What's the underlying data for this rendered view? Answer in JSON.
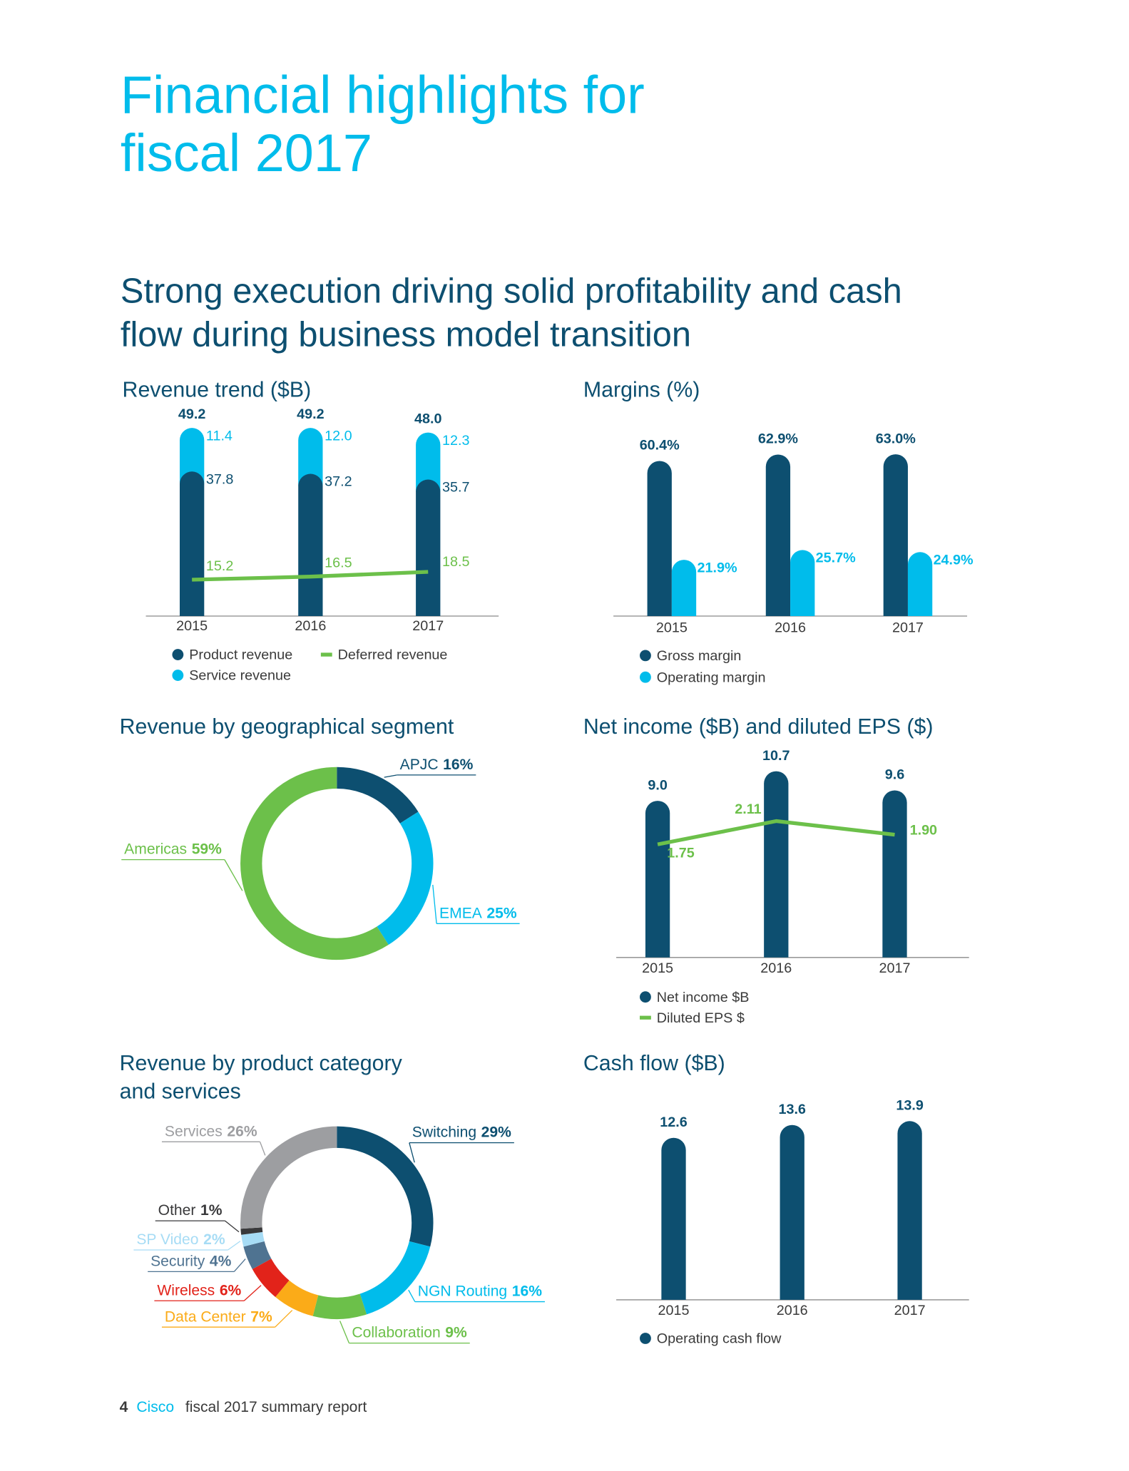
{
  "header": {
    "title": [
      "Financial highlights for",
      "fiscal 2017"
    ],
    "subtitle": [
      "Strong execution driving solid profitability and cash",
      "flow during business model transition"
    ]
  },
  "chart_data": [
    {
      "type": "bar",
      "stacked": true,
      "title": "Revenue trend ($B)",
      "categories": [
        "2015",
        "2016",
        "2017"
      ],
      "series": [
        {
          "name": "Product revenue",
          "color": "#0d4f70",
          "values": [
            37.8,
            37.2,
            35.7
          ]
        },
        {
          "name": "Service revenue",
          "color": "#00bceb",
          "values": [
            11.4,
            12.0,
            12.3
          ],
          "value_labels": [
            "11.4",
            "12.0",
            "12.3"
          ]
        },
        {
          "name": "Deferred revenue",
          "color": "#6cc04a",
          "kind": "line",
          "axis": "y2",
          "values": [
            15.2,
            16.5,
            18.5
          ]
        }
      ],
      "totals": {
        "values": [
          49.2,
          49.2,
          48.0
        ],
        "value_labels": [
          "49.2",
          "49.2",
          "48.0"
        ]
      }
    },
    {
      "type": "bar",
      "title": "Margins (%)",
      "categories": [
        "2015",
        "2016",
        "2017"
      ],
      "series": [
        {
          "name": "Gross margin",
          "color": "#0d4f70",
          "values": [
            60.4,
            62.9,
            63.0
          ],
          "value_labels": [
            "60.4%",
            "62.9%",
            "63.0%"
          ]
        },
        {
          "name": "Operating margin",
          "color": "#00bceb",
          "values": [
            21.9,
            25.7,
            24.9
          ],
          "value_labels": [
            "21.9%",
            "25.7%",
            "24.9%"
          ]
        }
      ]
    },
    {
      "type": "donut",
      "title": "Revenue by geographical segment",
      "categories": [
        "APJC",
        "EMEA",
        "Americas"
      ],
      "values": [
        16,
        25,
        59
      ],
      "value_labels": [
        "16%",
        "25%",
        "59%"
      ],
      "colors": [
        "#0d4f70",
        "#00bceb",
        "#6cc04a"
      ]
    },
    {
      "type": "bar",
      "title": "Net income ($B) and diluted EPS ($)",
      "categories": [
        "2015",
        "2016",
        "2017"
      ],
      "series": [
        {
          "name": "Net income $B",
          "color": "#0d4f70",
          "values": [
            9.0,
            10.7,
            9.6
          ],
          "value_labels": [
            "9.0",
            "10.7",
            "9.6"
          ]
        },
        {
          "name": "Diluted EPS $",
          "color": "#6cc04a",
          "kind": "line",
          "axis": "y2",
          "values": [
            1.75,
            2.11,
            1.9
          ],
          "value_labels": [
            "1.75",
            "2.11",
            "1.90"
          ]
        }
      ]
    },
    {
      "type": "donut",
      "title": [
        "Revenue by product category",
        "and services"
      ],
      "categories": [
        "Switching",
        "NGN Routing",
        "Collaboration",
        "Data Center",
        "Wireless",
        "Security",
        "SP Video",
        "Other",
        "Services"
      ],
      "values": [
        29,
        16,
        9,
        7,
        6,
        4,
        2,
        1,
        26
      ],
      "value_labels": [
        "29%",
        "16%",
        "9%",
        "7%",
        "6%",
        "4%",
        "2%",
        "1%",
        "26%"
      ],
      "colors": [
        "#0d4f70",
        "#00bceb",
        "#6cc04a",
        "#fbab18",
        "#e2231a",
        "#4f7391",
        "#a7dcf5",
        "#39393b",
        "#9d9ea1"
      ]
    },
    {
      "type": "bar",
      "title": "Cash flow ($B)",
      "categories": [
        "2015",
        "2016",
        "2017"
      ],
      "series": [
        {
          "name": "Operating cash flow",
          "color": "#0d4f70",
          "values": [
            12.6,
            13.6,
            13.9
          ]
        }
      ]
    }
  ],
  "footer": {
    "page": 4,
    "brand": "Cisco",
    "text": "fiscal 2017 summary report"
  }
}
